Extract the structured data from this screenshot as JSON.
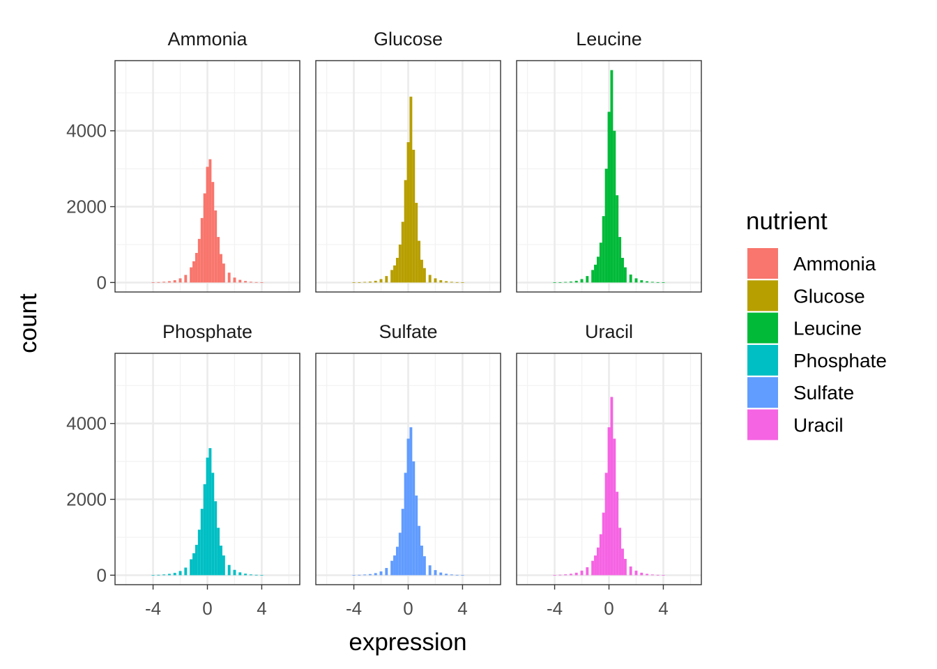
{
  "chart_data": {
    "type": "bar",
    "subtype": "faceted-histogram",
    "xlabel": "expression",
    "ylabel": "count",
    "xlim": [
      -6.8,
      6.8
    ],
    "ylim": [
      -250,
      5850
    ],
    "x_ticks": [
      -4,
      0,
      4
    ],
    "y_ticks": [
      0,
      2000,
      4000
    ],
    "grid": true,
    "legend_title": "nutrient",
    "legend_position": "right",
    "facets": [
      {
        "name": "Ammonia",
        "color": "#F8766D",
        "x": [
          -4.0,
          -3.6,
          -3.2,
          -2.8,
          -2.4,
          -2.0,
          -1.6,
          -1.2,
          -1.0,
          -0.8,
          -0.6,
          -0.4,
          -0.2,
          0.0,
          0.2,
          0.4,
          0.6,
          0.8,
          1.0,
          1.2,
          1.6,
          2.0,
          2.4,
          2.8,
          3.2,
          3.6,
          4.0
        ],
        "values": [
          5,
          10,
          20,
          35,
          60,
          110,
          200,
          400,
          560,
          780,
          1150,
          1700,
          2350,
          3050,
          3250,
          2650,
          1900,
          1200,
          750,
          500,
          260,
          130,
          70,
          40,
          20,
          10,
          5
        ]
      },
      {
        "name": "Glucose",
        "color": "#B79F00",
        "x": [
          -4.0,
          -3.6,
          -3.2,
          -2.8,
          -2.4,
          -2.0,
          -1.6,
          -1.2,
          -1.0,
          -0.8,
          -0.6,
          -0.4,
          -0.2,
          0.0,
          0.2,
          0.4,
          0.6,
          0.8,
          1.0,
          1.2,
          1.6,
          2.0,
          2.4,
          2.8,
          3.2,
          3.6,
          4.0
        ],
        "values": [
          5,
          8,
          15,
          25,
          45,
          90,
          170,
          330,
          450,
          650,
          1000,
          1600,
          2700,
          3700,
          4900,
          3500,
          2100,
          1100,
          600,
          380,
          200,
          110,
          60,
          35,
          18,
          9,
          4
        ]
      },
      {
        "name": "Leucine",
        "color": "#00BA38",
        "x": [
          -4.0,
          -3.6,
          -3.2,
          -2.8,
          -2.4,
          -2.0,
          -1.6,
          -1.2,
          -1.0,
          -0.8,
          -0.6,
          -0.4,
          -0.2,
          0.0,
          0.2,
          0.4,
          0.6,
          0.8,
          1.0,
          1.2,
          1.6,
          2.0,
          2.4,
          2.8,
          3.2,
          3.6,
          4.0
        ],
        "values": [
          4,
          8,
          14,
          25,
          45,
          90,
          170,
          330,
          470,
          680,
          1050,
          1750,
          3000,
          4500,
          5600,
          4000,
          2300,
          1200,
          650,
          400,
          210,
          110,
          60,
          33,
          17,
          8,
          4
        ]
      },
      {
        "name": "Phosphate",
        "color": "#00BFC4",
        "x": [
          -4.0,
          -3.6,
          -3.2,
          -2.8,
          -2.4,
          -2.0,
          -1.6,
          -1.2,
          -1.0,
          -0.8,
          -0.6,
          -0.4,
          -0.2,
          0.0,
          0.2,
          0.4,
          0.6,
          0.8,
          1.0,
          1.2,
          1.6,
          2.0,
          2.4,
          2.8,
          3.2,
          3.6,
          4.0
        ],
        "values": [
          5,
          10,
          20,
          35,
          60,
          110,
          200,
          420,
          580,
          800,
          1200,
          1750,
          2400,
          3100,
          3350,
          2700,
          1950,
          1250,
          780,
          520,
          270,
          140,
          75,
          40,
          20,
          10,
          5
        ]
      },
      {
        "name": "Sulfate",
        "color": "#619CFF",
        "x": [
          -4.0,
          -3.6,
          -3.2,
          -2.8,
          -2.4,
          -2.0,
          -1.6,
          -1.2,
          -1.0,
          -0.8,
          -0.6,
          -0.4,
          -0.2,
          0.0,
          0.2,
          0.4,
          0.6,
          0.8,
          1.0,
          1.2,
          1.6,
          2.0,
          2.4,
          2.8,
          3.2,
          3.6,
          4.0
        ],
        "values": [
          5,
          10,
          18,
          30,
          55,
          100,
          190,
          380,
          520,
          750,
          1120,
          1750,
          2700,
          3600,
          3900,
          3000,
          2100,
          1300,
          780,
          500,
          260,
          135,
          70,
          38,
          19,
          9,
          5
        ]
      },
      {
        "name": "Uracil",
        "color": "#F564E3",
        "x": [
          -4.0,
          -3.6,
          -3.2,
          -2.8,
          -2.4,
          -2.0,
          -1.6,
          -1.2,
          -1.0,
          -0.8,
          -0.6,
          -0.4,
          -0.2,
          0.0,
          0.2,
          0.4,
          0.6,
          0.8,
          1.0,
          1.2,
          1.6,
          2.0,
          2.4,
          2.8,
          3.2,
          3.6,
          4.0
        ],
        "values": [
          6,
          12,
          22,
          38,
          65,
          120,
          210,
          380,
          520,
          730,
          1080,
          1650,
          2700,
          3900,
          4700,
          3600,
          2200,
          1250,
          700,
          430,
          230,
          120,
          65,
          36,
          18,
          9,
          5
        ]
      }
    ]
  }
}
